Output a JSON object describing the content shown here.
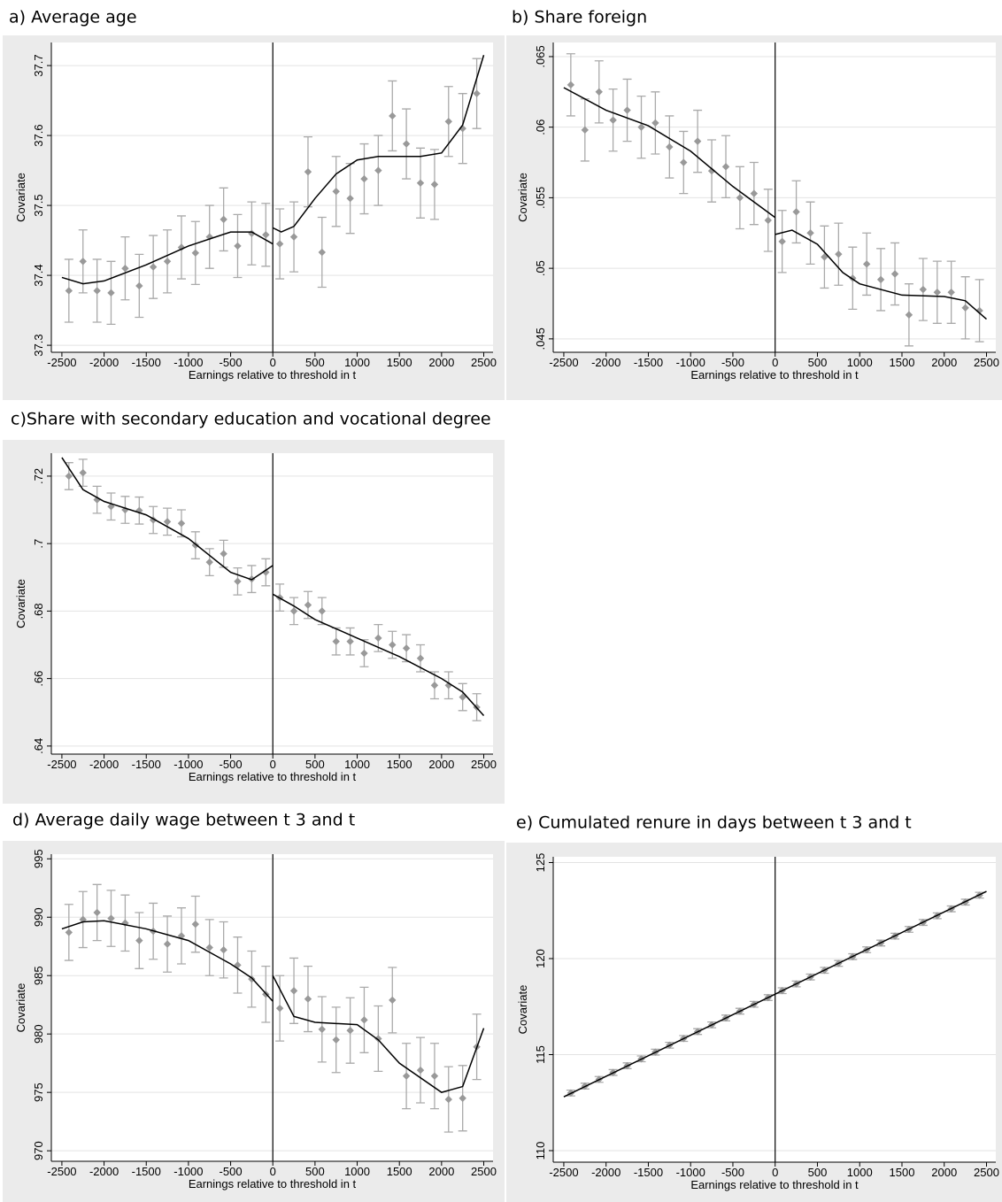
{
  "chart_data": [
    {
      "type": "scatter",
      "title": "a) Average age",
      "x_label": "Earnings relative to threshold in t",
      "y_label": "Covariate",
      "x": [
        -2417,
        -2250,
        -2083,
        -1917,
        -1750,
        -1583,
        -1417,
        -1250,
        -1083,
        -917,
        -750,
        -583,
        -417,
        -250,
        -83,
        83,
        250,
        417,
        583,
        750,
        917,
        1083,
        1250,
        1417,
        1583,
        1750,
        1917,
        2083,
        2250,
        2417
      ],
      "values": [
        37.378,
        37.42,
        37.378,
        37.375,
        37.41,
        37.385,
        37.412,
        37.42,
        37.44,
        37.432,
        37.455,
        37.48,
        37.442,
        37.46,
        37.458,
        37.445,
        37.455,
        37.548,
        37.433,
        37.52,
        37.51,
        37.538,
        37.55,
        37.628,
        37.588,
        37.532,
        37.53,
        37.62,
        37.61,
        37.66
      ],
      "errors": [
        0.045,
        0.045,
        0.045,
        0.045,
        0.045,
        0.045,
        0.045,
        0.045,
        0.045,
        0.045,
        0.045,
        0.045,
        0.045,
        0.045,
        0.045,
        0.05,
        0.05,
        0.05,
        0.05,
        0.05,
        0.05,
        0.05,
        0.05,
        0.05,
        0.05,
        0.05,
        0.05,
        0.05,
        0.05,
        0.05
      ],
      "color": "#999999",
      "fit": {
        "x": [
          -2500,
          -2250,
          -2000,
          -1500,
          -1000,
          -500,
          -250,
          0,
          null,
          0,
          100,
          250,
          500,
          750,
          1000,
          1250,
          1500,
          1750,
          2000,
          2250,
          2500
        ],
        "values": [
          37.397,
          37.388,
          37.392,
          37.415,
          37.442,
          37.462,
          37.462,
          37.445,
          null,
          37.468,
          37.462,
          37.47,
          37.51,
          37.545,
          37.565,
          37.57,
          37.57,
          37.57,
          37.575,
          37.615,
          37.715
        ],
        "color": "#000000"
      },
      "vline": 0,
      "xlim": [
        -2625,
        2610
      ],
      "ylim": [
        37.29,
        37.733
      ],
      "xticks": [
        -2500,
        -2000,
        -1500,
        -1000,
        -500,
        0,
        500,
        1000,
        1500,
        2000,
        2500
      ],
      "yticks": [
        37.3,
        37.4,
        37.5,
        37.6,
        37.7
      ],
      "grid": true
    },
    {
      "type": "scatter",
      "title": "b) Share foreign",
      "x_label": "Earnings relative to threshold in t",
      "y_label": "Covariate",
      "x": [
        -2417,
        -2250,
        -2083,
        -1917,
        -1750,
        -1583,
        -1417,
        -1250,
        -1083,
        -917,
        -750,
        -583,
        -417,
        -250,
        -83,
        83,
        250,
        417,
        583,
        750,
        917,
        1083,
        1250,
        1417,
        1583,
        1750,
        1917,
        2083,
        2250,
        2417
      ],
      "values": [
        0.063,
        0.0598,
        0.0625,
        0.0605,
        0.0612,
        0.06,
        0.0603,
        0.0586,
        0.0575,
        0.059,
        0.0569,
        0.0572,
        0.055,
        0.0553,
        0.0534,
        0.0519,
        0.054,
        0.0525,
        0.0508,
        0.051,
        0.0493,
        0.0503,
        0.0492,
        0.0496,
        0.0467,
        0.0485,
        0.0483,
        0.0483,
        0.0472,
        0.047
      ],
      "errors": [
        0.0022,
        0.0022,
        0.0022,
        0.0022,
        0.0022,
        0.0022,
        0.0022,
        0.0022,
        0.0022,
        0.0022,
        0.0022,
        0.0022,
        0.0022,
        0.0022,
        0.0022,
        0.0022,
        0.0022,
        0.0022,
        0.0022,
        0.0022,
        0.0022,
        0.0022,
        0.0022,
        0.0022,
        0.0022,
        0.0022,
        0.0022,
        0.0022,
        0.0022,
        0.0022
      ],
      "color": "#999999",
      "fit": {
        "x": [
          -2500,
          -2000,
          -1500,
          -1000,
          -500,
          0,
          null,
          0,
          200,
          500,
          800,
          1000,
          1500,
          2000,
          2250,
          2500
        ],
        "values": [
          0.0628,
          0.0612,
          0.0601,
          0.0583,
          0.0558,
          0.0536,
          null,
          0.0524,
          0.0527,
          0.0517,
          0.0497,
          0.0489,
          0.0481,
          0.048,
          0.0477,
          0.0464
        ],
        "color": "#000000"
      },
      "vline": 0,
      "xlim": [
        -2625,
        2610
      ],
      "ylim": [
        0.04405,
        0.066
      ],
      "xticks": [
        -2500,
        -2000,
        -1500,
        -1000,
        -500,
        0,
        500,
        1000,
        1500,
        2000,
        2500
      ],
      "yticks": [
        {
          "value": 0.045,
          "label": ".045"
        },
        {
          "value": 0.05,
          "label": ".05"
        },
        {
          "value": 0.055,
          "label": ".055"
        },
        {
          "value": 0.06,
          "label": ".06"
        },
        {
          "value": 0.065,
          "label": ".065"
        }
      ],
      "grid": true
    },
    {
      "type": "scatter",
      "title": "c)Share with secondary education and vocational degree",
      "x_label": "Earnings relative to threshold in t",
      "y_label": "Covariate",
      "x": [
        -2417,
        -2250,
        -2083,
        -1917,
        -1750,
        -1583,
        -1417,
        -1250,
        -1083,
        -917,
        -750,
        -583,
        -417,
        -250,
        -83,
        83,
        250,
        417,
        583,
        750,
        917,
        1083,
        1250,
        1417,
        1583,
        1750,
        1917,
        2083,
        2250,
        2417
      ],
      "values": [
        0.72,
        0.721,
        0.713,
        0.711,
        0.71,
        0.7098,
        0.707,
        0.7065,
        0.706,
        0.6995,
        0.6945,
        0.697,
        0.6888,
        0.6895,
        0.6915,
        0.684,
        0.68,
        0.6818,
        0.68,
        0.671,
        0.671,
        0.6675,
        0.672,
        0.67,
        0.669,
        0.666,
        0.658,
        0.658,
        0.6545,
        0.6515
      ],
      "errors": [
        0.004,
        0.004,
        0.004,
        0.004,
        0.004,
        0.004,
        0.004,
        0.004,
        0.004,
        0.004,
        0.004,
        0.004,
        0.004,
        0.004,
        0.004,
        0.004,
        0.004,
        0.004,
        0.004,
        0.004,
        0.004,
        0.004,
        0.004,
        0.004,
        0.004,
        0.004,
        0.004,
        0.004,
        0.004,
        0.004
      ],
      "color": "#999999",
      "fit": {
        "x": [
          -2500,
          -2250,
          -2000,
          -1500,
          -1000,
          -500,
          -250,
          0,
          null,
          0,
          250,
          500,
          1000,
          1500,
          2000,
          2250,
          2500
        ],
        "values": [
          0.7255,
          0.716,
          0.7125,
          0.7085,
          0.7015,
          0.6915,
          0.6893,
          0.6935,
          null,
          0.685,
          0.6815,
          0.6775,
          0.672,
          0.6665,
          0.66,
          0.656,
          0.649
        ],
        "color": "#000000"
      },
      "vline": 0,
      "xlim": [
        -2625,
        2610
      ],
      "ylim": [
        0.6376,
        0.7268
      ],
      "xticks": [
        -2500,
        -2000,
        -1500,
        -1000,
        -500,
        0,
        500,
        1000,
        1500,
        2000,
        2500
      ],
      "yticks": [
        {
          "value": 0.64,
          "label": ".64"
        },
        {
          "value": 0.66,
          "label": ".66"
        },
        {
          "value": 0.68,
          "label": ".68"
        },
        {
          "value": 0.7,
          "label": ".7"
        },
        {
          "value": 0.72,
          "label": ".72"
        }
      ],
      "grid": true
    },
    {
      "type": "scatter",
      "title": "d) Average daily wage between t 3 and t",
      "x_label": "Earnings relative to threshold in t",
      "y_label": "Covariate",
      "x": [
        -2417,
        -2250,
        -2083,
        -1917,
        -1750,
        -1583,
        -1417,
        -1250,
        -1083,
        -917,
        -750,
        -583,
        -417,
        -250,
        -83,
        83,
        250,
        417,
        583,
        750,
        917,
        1083,
        1250,
        1417,
        1583,
        1750,
        1917,
        2083,
        2250,
        2417
      ],
      "values": [
        988.7,
        989.8,
        990.4,
        989.9,
        989.5,
        988,
        988.8,
        987.7,
        988.4,
        989.4,
        987.4,
        987.2,
        985.9,
        984.7,
        983.4,
        982.2,
        983.7,
        983,
        980.4,
        979.5,
        980.3,
        981.2,
        979.6,
        982.9,
        976.4,
        976.9,
        976.4,
        974.4,
        974.5,
        978.9
      ],
      "errors": [
        2.4,
        2.4,
        2.4,
        2.4,
        2.4,
        2.4,
        2.4,
        2.4,
        2.4,
        2.4,
        2.4,
        2.4,
        2.4,
        2.4,
        2.4,
        2.8,
        2.8,
        2.8,
        2.8,
        2.8,
        2.8,
        2.8,
        2.8,
        2.8,
        2.8,
        2.8,
        2.8,
        2.8,
        2.8,
        2.8
      ],
      "color": "#999999",
      "fit": {
        "x": [
          -2500,
          -2250,
          -2000,
          -1500,
          -1000,
          -500,
          -250,
          0,
          null,
          0,
          250,
          500,
          1000,
          1250,
          1500,
          2000,
          2250,
          2500
        ],
        "values": [
          989,
          989.6,
          989.7,
          989,
          988,
          986,
          984.8,
          982.8,
          null,
          985,
          981.5,
          981,
          980.8,
          979.5,
          977.5,
          975,
          975.5,
          980.5
        ],
        "color": "#000000"
      },
      "vline": 0,
      "xlim": [
        -2625,
        2610
      ],
      "ylim": [
        969.1,
        995.4
      ],
      "xticks": [
        -2500,
        -2000,
        -1500,
        -1000,
        -500,
        0,
        500,
        1000,
        1500,
        2000,
        2500
      ],
      "yticks": [
        970,
        975,
        980,
        985,
        990,
        995
      ],
      "grid": true
    },
    {
      "type": "scatter",
      "title": "e) Cumulated renure in days between t 3 and t",
      "x_label": "Earnings relative to threshold in t",
      "y_label": "Covariate",
      "x": [
        -2417,
        -2250,
        -2083,
        -1917,
        -1750,
        -1583,
        -1417,
        -1250,
        -1083,
        -917,
        -750,
        -583,
        -417,
        -250,
        -83,
        83,
        250,
        417,
        583,
        750,
        917,
        1083,
        1250,
        1417,
        1583,
        1750,
        1917,
        2083,
        2250,
        2417
      ],
      "values": [
        113,
        113.36,
        113.71,
        114.07,
        114.42,
        114.78,
        115.13,
        115.49,
        115.84,
        116.2,
        116.55,
        116.91,
        117.26,
        117.62,
        117.97,
        118.33,
        118.68,
        119.04,
        119.39,
        119.75,
        120.1,
        120.46,
        120.81,
        121.17,
        121.52,
        121.88,
        122.23,
        122.59,
        122.94,
        123.3
      ],
      "errors": [
        0.15,
        0.15,
        0.15,
        0.15,
        0.15,
        0.15,
        0.15,
        0.15,
        0.15,
        0.15,
        0.15,
        0.15,
        0.15,
        0.15,
        0.15,
        0.15,
        0.15,
        0.15,
        0.15,
        0.15,
        0.15,
        0.15,
        0.15,
        0.15,
        0.15,
        0.15,
        0.15,
        0.15,
        0.15,
        0.15
      ],
      "color": "#999999",
      "fit": {
        "x": [
          -2500,
          0,
          null,
          0,
          2500
        ],
        "values": [
          112.8,
          118.15,
          null,
          118.15,
          123.5
        ],
        "color": "#000000"
      },
      "vline": 0,
      "xlim": [
        -2625,
        2610
      ],
      "ylim": [
        109.4,
        125.3
      ],
      "xticks": [
        -2500,
        -2000,
        -1500,
        -1000,
        -500,
        0,
        500,
        1000,
        1500,
        2000,
        2500
      ],
      "yticks": [
        110,
        115,
        120,
        125
      ],
      "grid": true
    }
  ]
}
